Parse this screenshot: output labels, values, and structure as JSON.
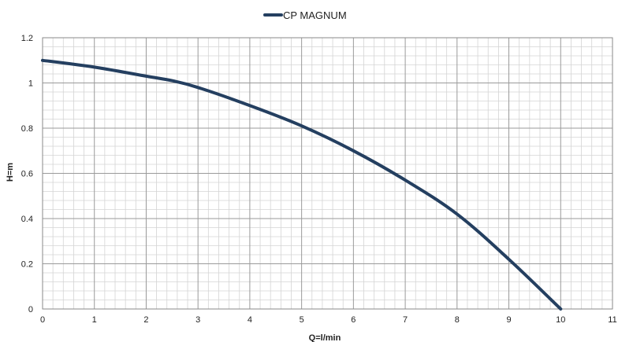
{
  "chart_data": {
    "type": "line",
    "title": "",
    "xlabel": "Q=l/min",
    "ylabel": "H=m",
    "xlim": [
      0,
      11
    ],
    "ylim": [
      0,
      1.2
    ],
    "x_ticks": [
      "0",
      "1",
      "2",
      "3",
      "4",
      "5",
      "6",
      "7",
      "8",
      "9",
      "10",
      "11"
    ],
    "y_ticks": [
      "0",
      "0.2",
      "0.4",
      "0.6",
      "0.8",
      "1",
      "1.2"
    ],
    "grid": true,
    "legend_position": "top-center",
    "series": [
      {
        "name": "CP MAGNUM",
        "color": "#243f60",
        "x": [
          0,
          1,
          2,
          2.5,
          3,
          4,
          5,
          6,
          7,
          8,
          9,
          10
        ],
        "y": [
          1.1,
          1.07,
          1.03,
          1.01,
          0.98,
          0.9,
          0.81,
          0.7,
          0.57,
          0.42,
          0.22,
          0.0
        ]
      }
    ]
  }
}
